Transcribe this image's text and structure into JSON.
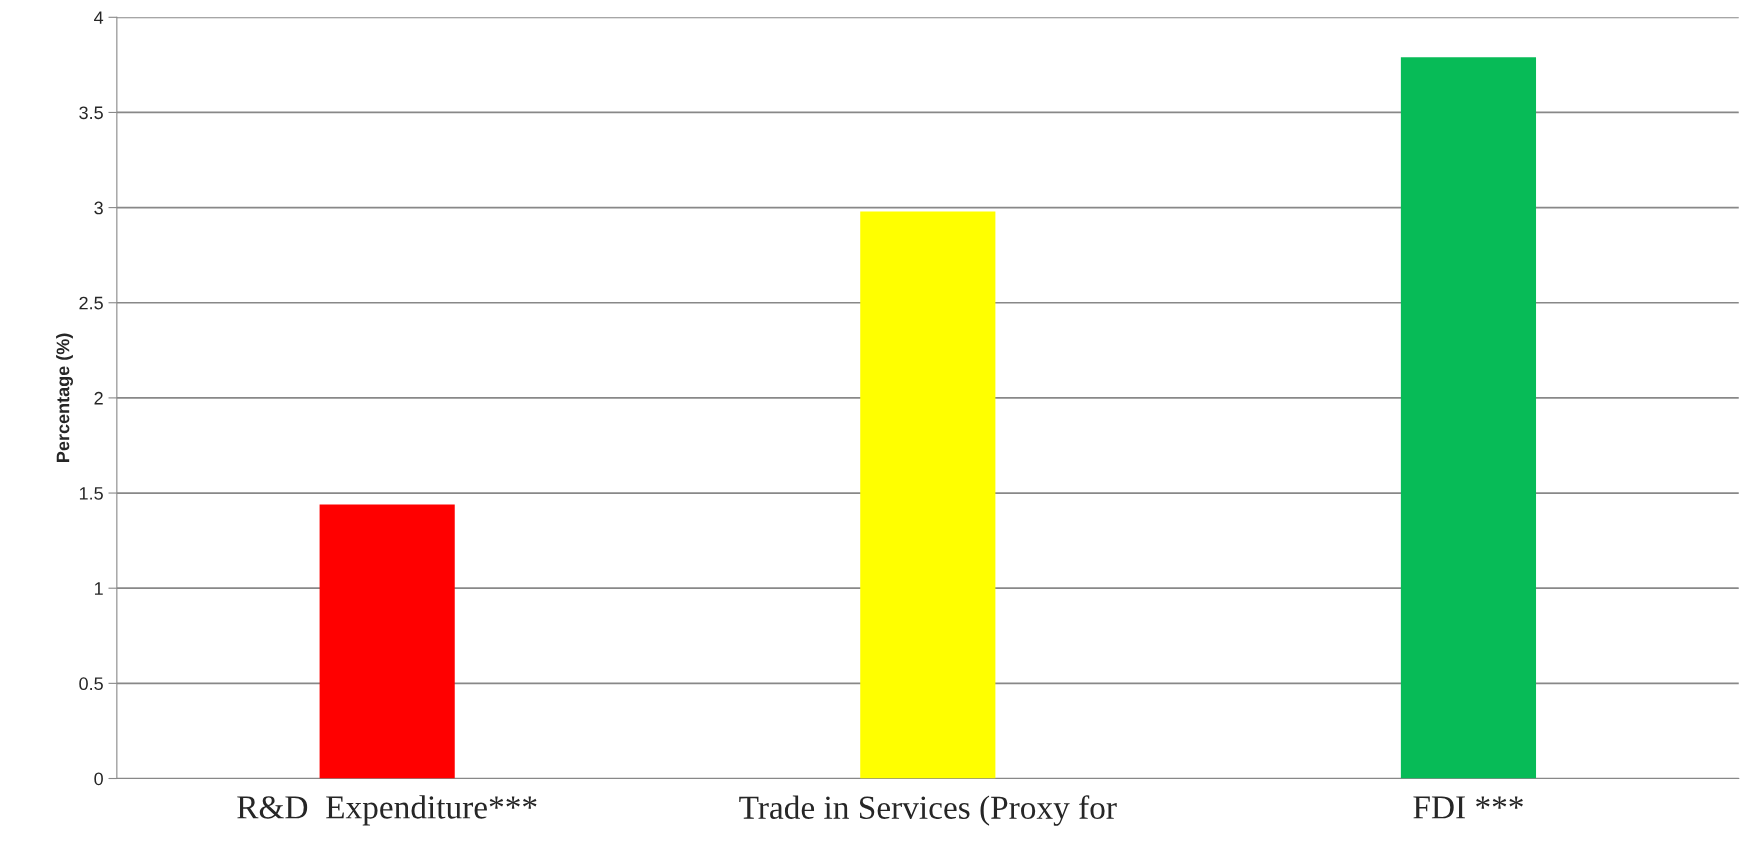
{
  "chart_data": {
    "type": "bar",
    "ylabel": "Percentage (%)",
    "categories": [
      "R&D  Expenditure***",
      "Trade in Services (Proxy for",
      "FDI ***"
    ],
    "values": [
      1.44,
      2.98,
      3.79
    ],
    "colors": [
      "#ff0000",
      "#ffff00",
      "#07bb57"
    ],
    "ylim": [
      0,
      4
    ],
    "yticks": [
      0,
      0.5,
      1,
      1.5,
      2,
      2.5,
      3,
      3.5,
      4
    ],
    "grid": "y"
  }
}
